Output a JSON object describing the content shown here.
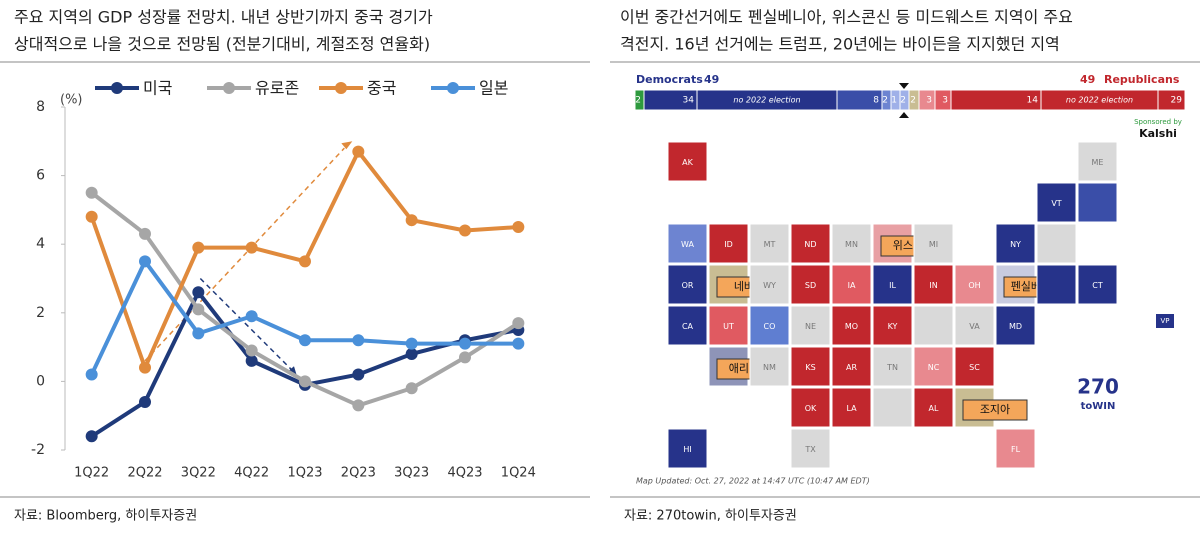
{
  "left_panel": {
    "source": "자료: Bloomberg, 하이투자증권"
  },
  "chart_data": {
    "type": "line",
    "title": [
      "주요 지역의 GDP 성장률 전망치. 내년 상반기까지 중국 경기가",
      "상대적으로 나을 것으로 전망됨 (전분기대비, 계절조정 연율화)"
    ],
    "y_unit": "(%)",
    "categories": [
      "1Q22",
      "2Q22",
      "3Q22",
      "4Q22",
      "1Q23",
      "2Q23",
      "3Q23",
      "4Q23",
      "1Q24"
    ],
    "series": [
      {
        "name": "미국",
        "color": "#1f3a7a",
        "values": [
          -1.6,
          -0.6,
          2.6,
          0.6,
          -0.1,
          0.2,
          0.8,
          1.2,
          1.5
        ]
      },
      {
        "name": "유로존",
        "color": "#a6a6a6",
        "values": [
          5.5,
          4.3,
          2.1,
          0.9,
          0.0,
          -0.7,
          -0.2,
          0.7,
          1.7
        ]
      },
      {
        "name": "중국",
        "color": "#e08a3c",
        "values": [
          4.8,
          0.4,
          3.9,
          3.9,
          3.5,
          6.7,
          4.7,
          4.4,
          4.5
        ]
      },
      {
        "name": "일본",
        "color": "#4a90d9",
        "values": [
          0.2,
          3.5,
          1.4,
          1.9,
          1.2,
          1.2,
          1.1,
          1.1,
          1.1
        ]
      }
    ],
    "ylim": [
      -2,
      8
    ],
    "yticks": [
      -2,
      0,
      2,
      4,
      6,
      8
    ],
    "grid": false
  },
  "right_panel": {
    "title": [
      "이번 중간선거에도 펜실베니아, 위스콘신 등 미드웨스트 지역이 주요",
      "격전지. 16년 선거에는 트럼프, 20년에는 바이든을 지지했던 지역"
    ],
    "dem_label": "Democrats",
    "dem_total": 49,
    "rep_total": 49,
    "rep_label": "Republicans",
    "segments": [
      {
        "value": 2,
        "color": "#2e9a3e"
      },
      {
        "value": 34,
        "color": "#26338a"
      },
      {
        "label": "no 2022 election",
        "color": "#26338a"
      },
      {
        "value": 8,
        "color": "#3a4ea8"
      },
      {
        "value": 2,
        "color": "#6d84d1"
      },
      {
        "value": 1,
        "color": "#9fb0e8"
      },
      {
        "value": 2,
        "color": "#9fb0e8"
      },
      {
        "value": 2,
        "color": "#c9bd93"
      },
      {
        "value": 3,
        "color": "#e8898f"
      },
      {
        "value": 3,
        "color": "#e05a61"
      },
      {
        "value": 14,
        "color": "#c1272d"
      },
      {
        "label": "no 2022 election",
        "color": "#c1272d"
      },
      {
        "value": 29,
        "color": "#c1272d"
      }
    ],
    "sponsor": "Sponsored by",
    "sponsor_name": "Kalshi",
    "logo": [
      "270",
      "toWIN"
    ],
    "updated": "Map Updated: Oct. 27, 2022 at 14:47 UTC (10:47 AM EDT)",
    "vp": "VP",
    "states": [
      {
        "label": "AK",
        "color": "#c1272d"
      },
      {
        "label": "ME",
        "color": "#d9d9d9"
      },
      {
        "label": "VT",
        "color": "#26338a"
      },
      {
        "color": "#3a4ea8"
      },
      {
        "label": "WA",
        "color": "#6d84d1"
      },
      {
        "label": "ID",
        "color": "#c1272d"
      },
      {
        "label": "MT",
        "color": "#d9d9d9"
      },
      {
        "label": "ND",
        "color": "#c1272d"
      },
      {
        "label": "MN",
        "color": "#d9d9d9"
      },
      {
        "color": "#e8a0a4",
        "callout": "위스콘신"
      },
      {
        "label": "MI",
        "color": "#d9d9d9"
      },
      {
        "label": "NY",
        "color": "#26338a"
      },
      {
        "color": "#d9d9d9"
      },
      {
        "label": "OR",
        "color": "#26338a"
      },
      {
        "color": "#c9bd93",
        "callout": "네바다"
      },
      {
        "label": "WY",
        "color": "#d9d9d9"
      },
      {
        "label": "SD",
        "color": "#c1272d"
      },
      {
        "label": "IA",
        "color": "#e05a61"
      },
      {
        "label": "IL",
        "color": "#26338a"
      },
      {
        "label": "IN",
        "color": "#c1272d"
      },
      {
        "label": "OH",
        "color": "#e8898f"
      },
      {
        "color": "#c8cbe0",
        "callout": "펜실베니아"
      },
      {
        "color": "#26338a"
      },
      {
        "label": "CT",
        "color": "#26338a"
      },
      {
        "label": "CA",
        "color": "#26338a"
      },
      {
        "label": "UT",
        "color": "#e05a61"
      },
      {
        "label": "CO",
        "color": "#5f7ed1"
      },
      {
        "label": "NE",
        "color": "#d9d9d9"
      },
      {
        "label": "MO",
        "color": "#c1272d"
      },
      {
        "label": "KY",
        "color": "#c1272d"
      },
      {
        "color": "#d9d9d9"
      },
      {
        "label": "VA",
        "color": "#d9d9d9"
      },
      {
        "label": "MD",
        "color": "#26338a"
      },
      {
        "color": "#8e94b8",
        "callout": "애리조나"
      },
      {
        "label": "NM",
        "color": "#d9d9d9"
      },
      {
        "label": "KS",
        "color": "#c1272d"
      },
      {
        "label": "AR",
        "color": "#c1272d"
      },
      {
        "label": "TN",
        "color": "#d9d9d9"
      },
      {
        "label": "NC",
        "color": "#e8898f"
      },
      {
        "label": "SC",
        "color": "#c1272d"
      },
      {
        "label": "OK",
        "color": "#c1272d"
      },
      {
        "label": "LA",
        "color": "#c1272d"
      },
      {
        "color": "#d9d9d9"
      },
      {
        "label": "AL",
        "color": "#c1272d"
      },
      {
        "color": "#c9bd93",
        "callout": "조지아"
      },
      {
        "label": "HI",
        "color": "#26338a"
      },
      {
        "label": "TX",
        "color": "#d9d9d9"
      },
      {
        "label": "FL",
        "color": "#e8898f"
      }
    ],
    "source": "자료: 270towin, 하이투자증권"
  }
}
